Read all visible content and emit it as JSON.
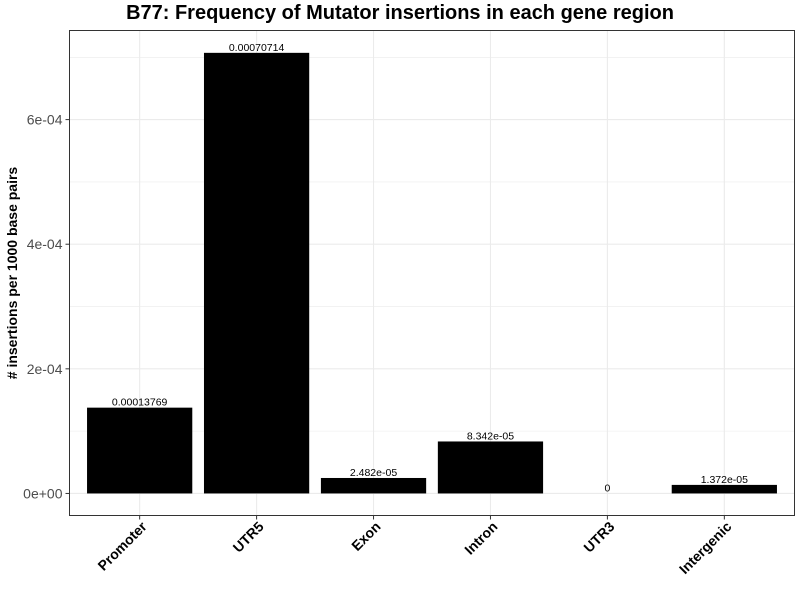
{
  "chart_data": {
    "type": "bar",
    "title": "B77: Frequency of Mutator insertions in each gene region",
    "xlabel": "",
    "ylabel": "# insertions per 1000 base pairs",
    "categories": [
      "Promoter",
      "UTR5",
      "Exon",
      "Intron",
      "UTR3",
      "Intergenic"
    ],
    "values": [
      0.00013769,
      0.00070714,
      2.482e-05,
      8.342e-05,
      0,
      1.372e-05
    ],
    "data_labels": [
      "0.00013769",
      "0.00070714",
      "2.482e-05",
      "8.342e-05",
      "0",
      "1.372e-05"
    ],
    "yticks": [
      0,
      0.0002,
      0.0004,
      0.0006
    ],
    "ytick_labels": [
      "0e+00",
      "2e-04",
      "4e-04",
      "6e-04"
    ],
    "ylim": [
      -3.54e-05,
      0.000743
    ],
    "grid": true,
    "bar_color": "#000000",
    "grid_color": "#ebebeb",
    "panel_border_color": "#333333"
  }
}
